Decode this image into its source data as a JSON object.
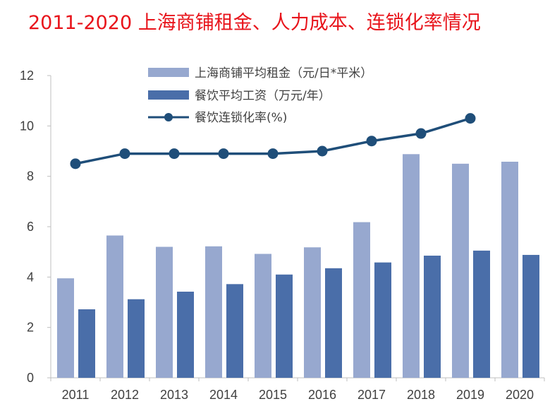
{
  "chart_data": {
    "type": "bar",
    "title": "2011-2020 上海商铺租金、人力成本、连锁化率情况",
    "categories": [
      "2011",
      "2012",
      "2013",
      "2014",
      "2015",
      "2016",
      "2017",
      "2018",
      "2019",
      "2020"
    ],
    "series": [
      {
        "name": "上海商铺平均租金（元/日*平米）",
        "type": "bar",
        "color": "#97a8cf",
        "values": [
          3.95,
          5.65,
          5.2,
          5.22,
          4.92,
          5.18,
          6.18,
          8.88,
          8.5,
          8.58
        ]
      },
      {
        "name": "餐饮平均工资（万元/年）",
        "type": "bar",
        "color": "#4a6ea9",
        "values": [
          2.72,
          3.12,
          3.42,
          3.72,
          4.1,
          4.35,
          4.58,
          4.85,
          5.05,
          4.88
        ]
      },
      {
        "name": "餐饮连锁化率(%)",
        "type": "line",
        "color": "#1f4e79",
        "values": [
          8.5,
          8.9,
          8.9,
          8.9,
          8.9,
          9.0,
          9.4,
          9.7,
          10.3,
          null
        ]
      }
    ],
    "yticks": [
      "0",
      "2",
      "4",
      "6",
      "8",
      "10",
      "12"
    ],
    "ylim": [
      0,
      12
    ],
    "grid": false,
    "legend_position": "top"
  }
}
